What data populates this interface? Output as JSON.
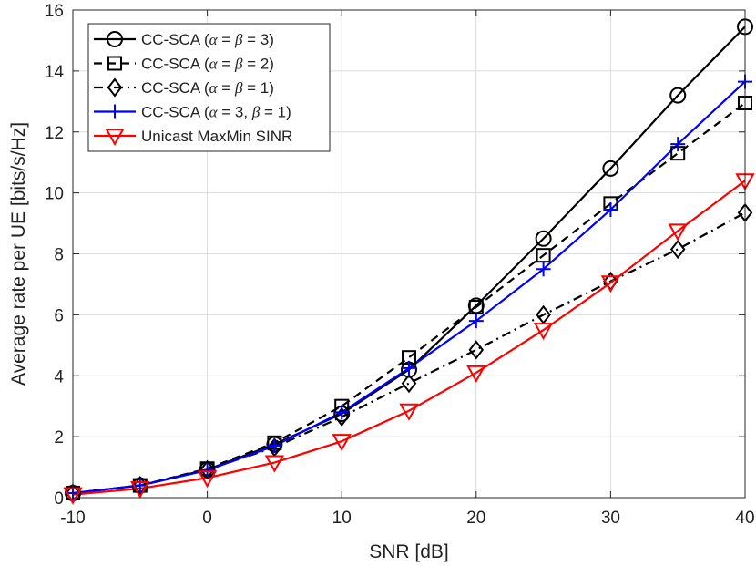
{
  "chart_data": {
    "type": "line",
    "title": "",
    "xlabel": "SNR [dB]",
    "ylabel": "Average rate per UE [bits/s/Hz]",
    "xlim": [
      -10,
      40
    ],
    "ylim": [
      0,
      16
    ],
    "xticks": [
      -10,
      0,
      10,
      20,
      30,
      40
    ],
    "yticks": [
      0,
      2,
      4,
      6,
      8,
      10,
      12,
      14,
      16
    ],
    "xtick_labels": [
      "-10",
      "0",
      "10",
      "20",
      "30",
      "40"
    ],
    "ytick_labels": [
      "0",
      "2",
      "4",
      "6",
      "8",
      "10",
      "12",
      "14",
      "16"
    ],
    "grid": true,
    "legend_position": "top-left",
    "x": [
      -10,
      -5,
      0,
      5,
      10,
      15,
      20,
      25,
      30,
      35,
      40
    ],
    "series": [
      {
        "name": "CC-SCA (α = β = 3)",
        "legend_parts": [
          {
            "t": "CC-SCA ("
          },
          {
            "t": "α",
            "g": true
          },
          {
            "t": " =  "
          },
          {
            "t": "β",
            "g": true
          },
          {
            "t": " =  3)"
          }
        ],
        "values": [
          0.15,
          0.4,
          0.92,
          1.75,
          2.75,
          4.2,
          6.3,
          8.5,
          10.8,
          13.2,
          15.45
        ],
        "color": "#000000",
        "dash": "",
        "marker": "circle"
      },
      {
        "name": "CC-SCA (α = β = 2)",
        "legend_parts": [
          {
            "t": "CC-SCA ("
          },
          {
            "t": "α",
            "g": true
          },
          {
            "t": " =  "
          },
          {
            "t": "β",
            "g": true
          },
          {
            "t": " =  2)"
          }
        ],
        "values": [
          0.15,
          0.4,
          0.95,
          1.8,
          3.0,
          4.6,
          6.25,
          7.95,
          9.65,
          11.3,
          12.95
        ],
        "color": "#000000",
        "dash": "9,6",
        "marker": "square"
      },
      {
        "name": "CC-SCA (α = β = 1)",
        "legend_parts": [
          {
            "t": "CC-SCA ("
          },
          {
            "t": "α",
            "g": true
          },
          {
            "t": " =  "
          },
          {
            "t": "β",
            "g": true
          },
          {
            "t": " =  1)"
          }
        ],
        "values": [
          0.15,
          0.4,
          0.92,
          1.65,
          2.65,
          3.75,
          4.85,
          6.0,
          7.1,
          8.15,
          9.35
        ],
        "color": "#000000",
        "dash": "10,5,2,5",
        "marker": "diamond"
      },
      {
        "name": "CC-SCA (α = 3, β = 1)",
        "legend_parts": [
          {
            "t": "CC-SCA ("
          },
          {
            "t": "α",
            "g": true
          },
          {
            "t": " = 3,  "
          },
          {
            "t": "β",
            "g": true
          },
          {
            "t": " =  1)"
          }
        ],
        "values": [
          0.15,
          0.4,
          0.9,
          1.7,
          2.8,
          4.25,
          5.8,
          7.5,
          9.45,
          11.6,
          13.65
        ],
        "color": "#0000ff",
        "dash": "",
        "marker": "plus"
      },
      {
        "name": "Unicast MaxMin SINR",
        "legend_parts": [
          {
            "t": "Unicast MaxMin SINR"
          }
        ],
        "values": [
          0.1,
          0.3,
          0.65,
          1.15,
          1.85,
          2.85,
          4.1,
          5.5,
          7.05,
          8.75,
          10.4
        ],
        "color": "#ff0000",
        "dash": "",
        "marker": "triangle-down"
      }
    ]
  }
}
